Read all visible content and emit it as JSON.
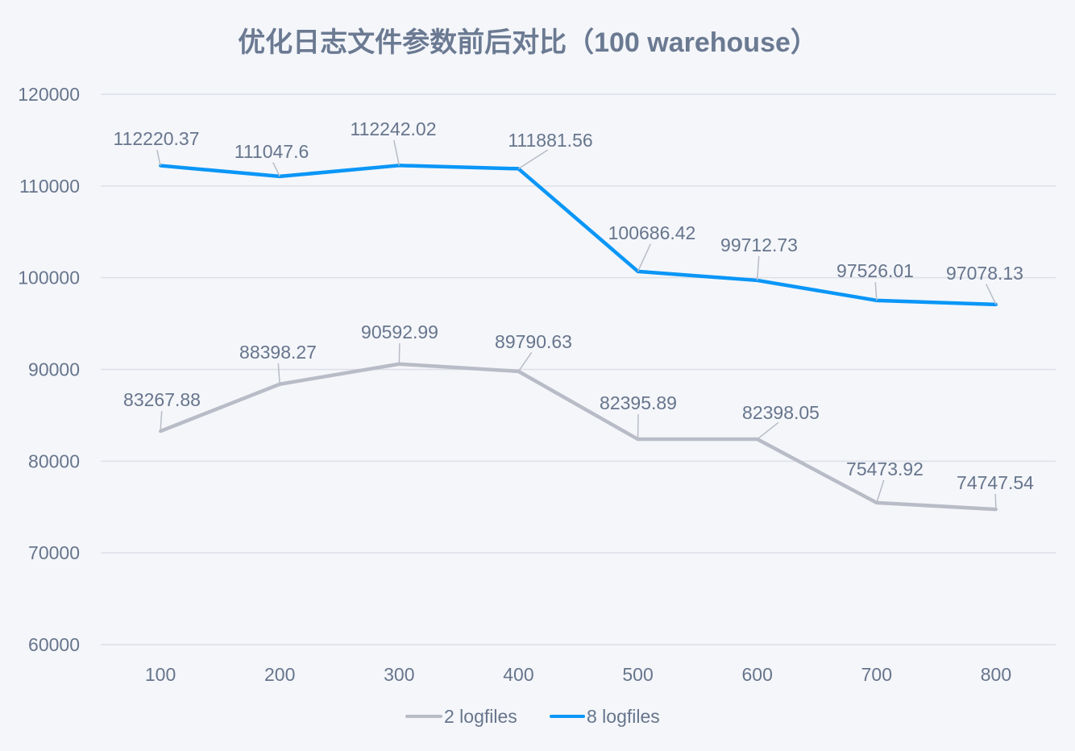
{
  "chart_data": {
    "type": "line",
    "title": "优化日志文件参数前后对比（100 warehouse）",
    "xlabel": "",
    "ylabel": "",
    "categories": [
      "100",
      "200",
      "300",
      "400",
      "500",
      "600",
      "700",
      "800"
    ],
    "ylim": [
      60000,
      120000
    ],
    "yticks": [
      "60000",
      "70000",
      "80000",
      "90000",
      "100000",
      "110000",
      "120000"
    ],
    "grid": true,
    "legend": "bottom",
    "series": [
      {
        "name": "2 logfiles",
        "color": "#b8bcc6",
        "values": [
          83267.88,
          88398.27,
          90592.99,
          89790.63,
          82395.89,
          82398.05,
          75473.92,
          74747.54
        ],
        "labels": [
          "83267.88",
          "88398.27",
          "90592.99",
          "89790.63",
          "82395.89",
          "82398.05",
          "75473.92",
          "74747.54"
        ]
      },
      {
        "name": "8 logfiles",
        "color": "#0a96f7",
        "values": [
          112220.37,
          111047.6,
          112242.02,
          111881.56,
          100686.42,
          99712.73,
          97526.01,
          97078.13
        ],
        "labels": [
          "112220.37",
          "111047.6",
          "112242.02",
          "111881.56",
          "100686.42",
          "99712.73",
          "97526.01",
          "97078.13"
        ]
      }
    ]
  }
}
